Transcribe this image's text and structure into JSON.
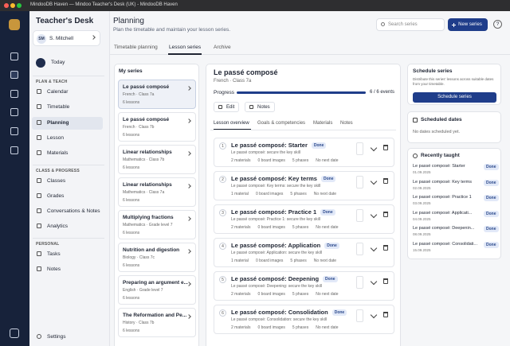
{
  "window": {
    "title": "MindooDB Haven — Mindoo Teacher's Desk (UK) - MindooDB Haven"
  },
  "sidebar": {
    "app_name": "Teacher's Desk",
    "user": {
      "initials": "SM",
      "name": "S. Mitchell"
    },
    "today": "Today",
    "sections": [
      {
        "heading": "PLAN & TEACH",
        "items": [
          "Calendar",
          "Timetable",
          "Planning",
          "Lesson",
          "Materials"
        ]
      },
      {
        "heading": "CLASS & PROGRESS",
        "items": [
          "Classes",
          "Grades",
          "Conversations & Notes",
          "Analytics"
        ]
      },
      {
        "heading": "PERSONAL",
        "items": [
          "Tasks",
          "Notes"
        ]
      }
    ],
    "active": "Planning",
    "settings": "Settings"
  },
  "header": {
    "title": "Planning",
    "subtitle": "Plan the timetable and maintain your lesson series.",
    "search_placeholder": "Search series",
    "new_button": "New series",
    "help": "?"
  },
  "tabs": {
    "items": [
      "Timetable planning",
      "Lesson series",
      "Archive"
    ],
    "active": 1
  },
  "series_list": {
    "title": "My series",
    "selected": 0,
    "items": [
      {
        "title": "Le passé composé",
        "meta": "French · Class 7a",
        "lessons": "6 lessons"
      },
      {
        "title": "Le passé composé",
        "meta": "French · Class 7b",
        "lessons": "6 lessons"
      },
      {
        "title": "Linear relationships",
        "meta": "Mathematics · Class 7b",
        "lessons": "6 lessons"
      },
      {
        "title": "Linear relationships",
        "meta": "Mathematics · Class 7a",
        "lessons": "6 lessons"
      },
      {
        "title": "Multiplying fractions",
        "meta": "Mathematics · Grade level 7",
        "lessons": "6 lessons"
      },
      {
        "title": "Nutrition and digestion",
        "meta": "Biology · Class 7c",
        "lessons": "6 lessons"
      },
      {
        "title": "Preparing an argument e...",
        "meta": "English · Grade level 7",
        "lessons": "6 lessons"
      },
      {
        "title": "The Reformation and Pe...",
        "meta": "History · Class 7b",
        "lessons": "6 lessons"
      }
    ]
  },
  "detail": {
    "title": "Le passé composé",
    "subtitle": "French · Class 7a",
    "progress_label": "Progress",
    "progress_text": "6 / 6 events",
    "buttons": [
      "Edit",
      "Notes"
    ],
    "tabs": [
      "Lesson overview",
      "Goals & competencies",
      "Materials",
      "Notes"
    ],
    "active_tab": 0,
    "lessons": [
      {
        "number": 1,
        "title": "Le passé composé: Starter",
        "status": "Done",
        "subtitle": "Le passé composé: secure the key skill",
        "meta": [
          "2 materials",
          "0 board images",
          "5 phases",
          "No next date"
        ]
      },
      {
        "number": 2,
        "title": "Le passé composé: Key terms",
        "status": "Done",
        "subtitle": "Le passé composé: Key terms: secure the key skill",
        "meta": [
          "1 material",
          "0 board images",
          "5 phases",
          "No next date"
        ]
      },
      {
        "number": 3,
        "title": "Le passé composé: Practice 1",
        "status": "Done",
        "subtitle": "Le passé composé: Practice 1: secure the key skill",
        "meta": [
          "2 materials",
          "0 board images",
          "5 phases",
          "No next date"
        ]
      },
      {
        "number": 4,
        "title": "Le passé composé: Application",
        "status": "Done",
        "subtitle": "Le passé composé: Application: secure the key skill",
        "meta": [
          "1 material",
          "0 board images",
          "5 phases",
          "No next date"
        ]
      },
      {
        "number": 5,
        "title": "Le passé composé: Deepening",
        "status": "Done",
        "subtitle": "Le passé composé: Deepening: secure the key skill",
        "meta": [
          "2 materials",
          "0 board images",
          "5 phases",
          "No next date"
        ]
      },
      {
        "number": 6,
        "title": "Le passé composé: Consolidation",
        "status": "Done",
        "subtitle": "Le passé composé: Consolidation: secure the key skill",
        "meta": [
          "2 materials",
          "0 board images",
          "5 phases",
          "No next date"
        ]
      }
    ]
  },
  "right": {
    "schedule": {
      "title": "Schedule series",
      "text": "Distribute this series' lessons across suitable dates from your timetable.",
      "button": "Schedule series"
    },
    "scheduled": {
      "title": "Scheduled dates",
      "empty": "No dates scheduled yet."
    },
    "recent": {
      "title": "Recently taught",
      "items": [
        {
          "title": "Le passé composé: Starter",
          "date": "01.09.2025",
          "status": "Done"
        },
        {
          "title": "Le passé composé: Key terms",
          "date": "02.09.2025",
          "status": "Done"
        },
        {
          "title": "Le passé composé: Practice 1",
          "date": "03.09.2025",
          "status": "Done"
        },
        {
          "title": "Le passé composé: Applicati...",
          "date": "04.09.2025",
          "status": "Done"
        },
        {
          "title": "Le passé composé: Deepenin...",
          "date": "08.09.2025",
          "status": "Done"
        },
        {
          "title": "Le passé composé: Consolidati...",
          "date": "15.09.2025",
          "status": "Done"
        }
      ]
    }
  }
}
